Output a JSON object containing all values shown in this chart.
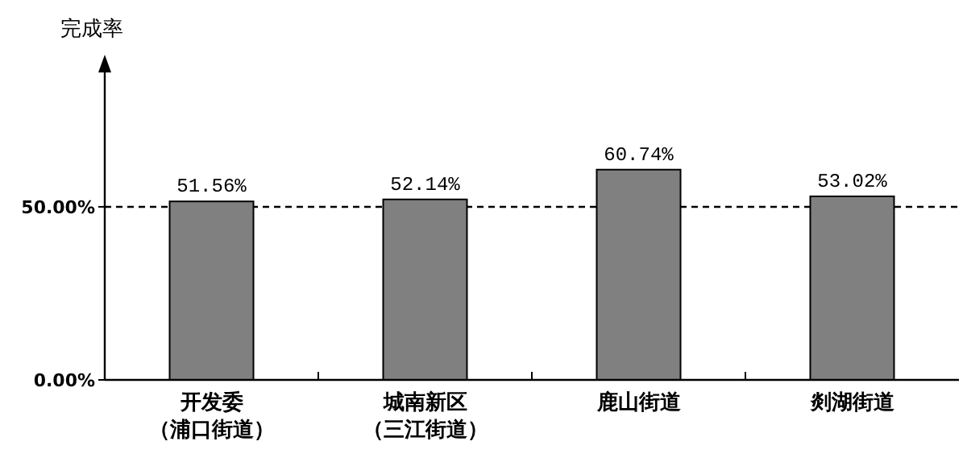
{
  "chart_data": {
    "type": "bar",
    "ylabel": "完成率",
    "categories": [
      "开发委（浦口街道）",
      "城南新区（三江街道）",
      "鹿山街道",
      "剡湖街道"
    ],
    "values": [
      51.56,
      52.14,
      60.74,
      53.02
    ],
    "color": "#808080",
    "value_labels": [
      "51.56%",
      "52.14%",
      "60.74%",
      "53.02%"
    ],
    "ylim": [
      0,
      93
    ],
    "yticks": [
      {
        "value": 0,
        "label": "0.00%"
      },
      {
        "value": 50,
        "label": "50.00%"
      }
    ],
    "ref_lines": [
      {
        "axis": "y",
        "value": 50,
        "line_style": "dashed",
        "color": "#000000"
      }
    ],
    "grid": false
  }
}
